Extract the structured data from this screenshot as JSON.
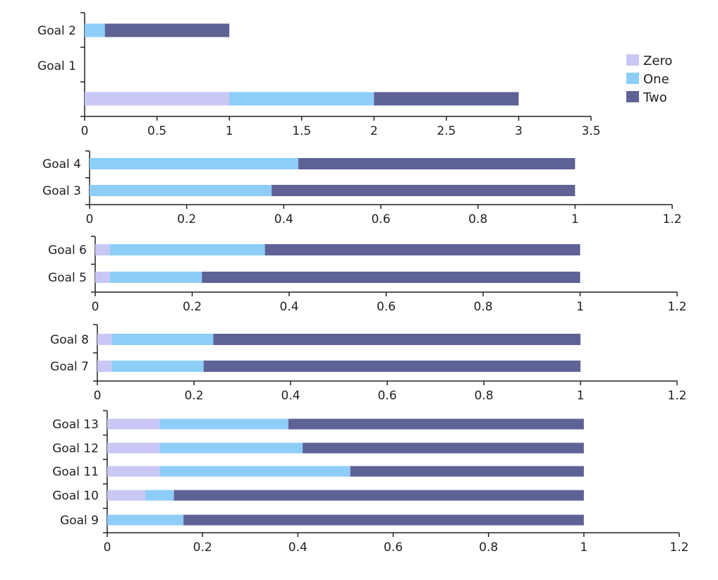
{
  "chart_data": [
    {
      "type": "bar",
      "orientation": "horizontal",
      "stacked": true,
      "categories": [
        "",
        "Goal 1",
        "Goal 2"
      ],
      "series": [
        {
          "name": "Zero",
          "values": [
            1,
            0,
            0
          ]
        },
        {
          "name": "One",
          "values": [
            1,
            0,
            0.14
          ]
        },
        {
          "name": "Two",
          "values": [
            1,
            0,
            0.86
          ]
        }
      ],
      "xlim": [
        0,
        3.5
      ],
      "ticks": [
        "0",
        "0.5",
        "1",
        "1.5",
        "2",
        "2.5",
        "3",
        "3.5"
      ]
    },
    {
      "type": "bar",
      "orientation": "horizontal",
      "stacked": true,
      "categories": [
        "Goal 3",
        "Goal 4"
      ],
      "series": [
        {
          "name": "Zero",
          "values": [
            0,
            0
          ]
        },
        {
          "name": "One",
          "values": [
            0.375,
            0.43
          ]
        },
        {
          "name": "Two",
          "values": [
            0.625,
            0.57
          ]
        }
      ],
      "xlim": [
        0,
        1.2
      ],
      "ticks": [
        "0",
        "0.2",
        "0.4",
        "0.6",
        "0.8",
        "1",
        "1.2"
      ]
    },
    {
      "type": "bar",
      "orientation": "horizontal",
      "stacked": true,
      "categories": [
        "Goal 5",
        "Goal 6"
      ],
      "series": [
        {
          "name": "Zero",
          "values": [
            0.03,
            0.03
          ]
        },
        {
          "name": "One",
          "values": [
            0.19,
            0.32
          ]
        },
        {
          "name": "Two",
          "values": [
            0.78,
            0.65
          ]
        }
      ],
      "xlim": [
        0,
        1.2
      ],
      "ticks": [
        "0",
        "0.2",
        "0.4",
        "0.6",
        "0.8",
        "1",
        "1.2"
      ]
    },
    {
      "type": "bar",
      "orientation": "horizontal",
      "stacked": true,
      "categories": [
        "Goal 7",
        "Goal 8"
      ],
      "series": [
        {
          "name": "Zero",
          "values": [
            0.03,
            0.03
          ]
        },
        {
          "name": "One",
          "values": [
            0.19,
            0.21
          ]
        },
        {
          "name": "Two",
          "values": [
            0.78,
            0.76
          ]
        }
      ],
      "xlim": [
        0,
        1.2
      ],
      "ticks": [
        "0",
        "0.2",
        "0.4",
        "0.6",
        "0.8",
        "1",
        "1.2"
      ]
    },
    {
      "type": "bar",
      "orientation": "horizontal",
      "stacked": true,
      "categories": [
        "Goal 9",
        "Goal 10",
        "Goal 11",
        "Goal 12",
        "Goal 13"
      ],
      "series": [
        {
          "name": "Zero",
          "values": [
            0,
            0.08,
            0.11,
            0.11,
            0.11
          ]
        },
        {
          "name": "One",
          "values": [
            0.16,
            0.06,
            0.4,
            0.3,
            0.27
          ]
        },
        {
          "name": "Two",
          "values": [
            0.84,
            0.86,
            0.49,
            0.59,
            0.62
          ]
        }
      ],
      "xlim": [
        0,
        1.2
      ],
      "ticks": [
        "0",
        "0.2",
        "0.4",
        "0.6",
        "0.8",
        "1",
        "1.2"
      ]
    }
  ],
  "legend": {
    "position": "right",
    "items": [
      {
        "name": "Zero",
        "color": "#c9c8f5"
      },
      {
        "name": "One",
        "color": "#8ecdf8"
      },
      {
        "name": "Two",
        "color": "#5e6295"
      }
    ]
  },
  "colors": {
    "axis": "#222222",
    "text": "#222222"
  }
}
